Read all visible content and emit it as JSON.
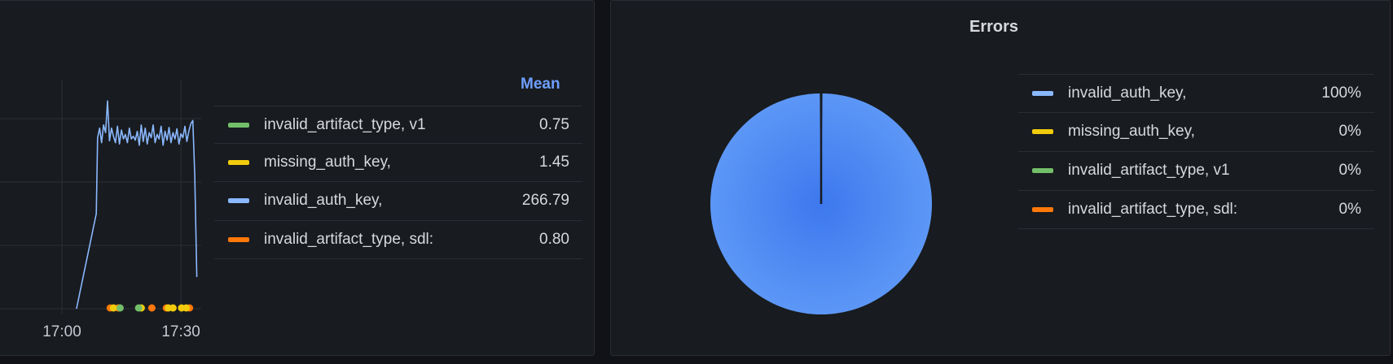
{
  "colors": {
    "invalid_auth_key": "#8ab8ff",
    "missing_auth_key": "#f2cc0c",
    "invalid_artifact_type_v1": "#73bf69",
    "invalid_artifact_type_sdl": "#ff780a",
    "pie_fill": "#5794f2",
    "panel_bg": "#181b1f"
  },
  "timeseries_panel": {
    "legend_header": "Mean",
    "legend": [
      {
        "label": "invalid_artifact_type, v1",
        "mean": "0.75",
        "color": "#73bf69"
      },
      {
        "label": "missing_auth_key,",
        "mean": "1.45",
        "color": "#f2cc0c"
      },
      {
        "label": "invalid_auth_key,",
        "mean": "266.79",
        "color": "#8ab8ff"
      },
      {
        "label": "invalid_artifact_type, sdl:",
        "mean": "0.80",
        "color": "#ff780a"
      }
    ]
  },
  "errors_panel": {
    "title": "Errors",
    "legend": [
      {
        "label": "invalid_auth_key,",
        "percent": "100%",
        "color": "#8ab8ff"
      },
      {
        "label": "missing_auth_key,",
        "percent": "0%",
        "color": "#f2cc0c"
      },
      {
        "label": "invalid_artifact_type, v1",
        "percent": "0%",
        "color": "#73bf69"
      },
      {
        "label": "invalid_artifact_type, sdl:",
        "percent": "0%",
        "color": "#ff780a"
      }
    ]
  },
  "chart_data": [
    {
      "type": "line",
      "x_ticks": [
        "17:00",
        "17:30"
      ],
      "grid": true,
      "legend_placement": "right",
      "series": [
        {
          "name": "invalid_auth_key,",
          "color": "#8ab8ff",
          "style": "line",
          "points": [
            [
              "17:03:40",
              0
            ],
            [
              "17:08:40",
              150
            ],
            [
              "17:09:00",
              270
            ],
            [
              "17:09:30",
              285
            ],
            [
              "17:10:00",
              262
            ],
            [
              "17:10:30",
              290
            ],
            [
              "17:11:00",
              278
            ],
            [
              "17:11:30",
              328
            ],
            [
              "17:12:00",
              265
            ],
            [
              "17:12:30",
              285
            ],
            [
              "17:13:00",
              272
            ],
            [
              "17:13:30",
              262
            ],
            [
              "17:14:00",
              288
            ],
            [
              "17:14:30",
              260
            ],
            [
              "17:15:00",
              282
            ],
            [
              "17:15:30",
              268
            ],
            [
              "17:16:00",
              275
            ],
            [
              "17:16:30",
              262
            ],
            [
              "17:17:00",
              285
            ],
            [
              "17:17:30",
              268
            ],
            [
              "17:18:00",
              272
            ],
            [
              "17:18:30",
              266
            ],
            [
              "17:19:00",
              280
            ],
            [
              "17:19:30",
              258
            ],
            [
              "17:20:00",
              290
            ],
            [
              "17:20:30",
              264
            ],
            [
              "17:21:00",
              285
            ],
            [
              "17:21:30",
              260
            ],
            [
              "17:22:00",
              278
            ],
            [
              "17:22:30",
              270
            ],
            [
              "17:23:00",
              290
            ],
            [
              "17:23:30",
              262
            ],
            [
              "17:24:00",
              275
            ],
            [
              "17:24:30",
              268
            ],
            [
              "17:25:00",
              288
            ],
            [
              "17:25:30",
              258
            ],
            [
              "17:26:00",
              280
            ],
            [
              "17:26:30",
              266
            ],
            [
              "17:27:00",
              286
            ],
            [
              "17:27:30",
              262
            ],
            [
              "17:28:00",
              278
            ],
            [
              "17:28:30",
              268
            ],
            [
              "17:29:00",
              284
            ],
            [
              "17:29:30",
              260
            ],
            [
              "17:30:00",
              276
            ],
            [
              "17:30:30",
              270
            ],
            [
              "17:31:00",
              288
            ],
            [
              "17:31:30",
              264
            ],
            [
              "17:32:00",
              280
            ],
            [
              "17:32:30",
              292
            ],
            [
              "17:33:00",
              297
            ],
            [
              "17:33:30",
              210
            ],
            [
              "17:34:00",
              50
            ]
          ]
        },
        {
          "name": "invalid_artifact_type, sdl:",
          "color": "#ff780a",
          "style": "points",
          "points": [
            [
              "17:12:10",
              1
            ],
            [
              "17:14:10",
              1
            ],
            [
              "17:22:40",
              1
            ],
            [
              "17:26:20",
              1
            ],
            [
              "17:32:10",
              1
            ]
          ]
        },
        {
          "name": "missing_auth_key,",
          "color": "#f2cc0c",
          "style": "points",
          "points": [
            [
              "17:13:00",
              2
            ],
            [
              "17:20:00",
              2
            ],
            [
              "17:26:50",
              2
            ],
            [
              "17:28:00",
              1
            ],
            [
              "17:30:10",
              1
            ],
            [
              "17:31:20",
              1
            ]
          ]
        },
        {
          "name": "invalid_artifact_type, v1",
          "color": "#73bf69",
          "style": "points",
          "points": [
            [
              "17:14:40",
              1
            ],
            [
              "17:19:20",
              1
            ]
          ]
        }
      ]
    },
    {
      "type": "pie",
      "title": "Errors",
      "legend_placement": "right",
      "slices": [
        {
          "label": "invalid_auth_key,",
          "value": 100
        },
        {
          "label": "missing_auth_key,",
          "value": 0
        },
        {
          "label": "invalid_artifact_type, v1",
          "value": 0
        },
        {
          "label": "invalid_artifact_type, sdl:",
          "value": 0
        }
      ]
    }
  ]
}
